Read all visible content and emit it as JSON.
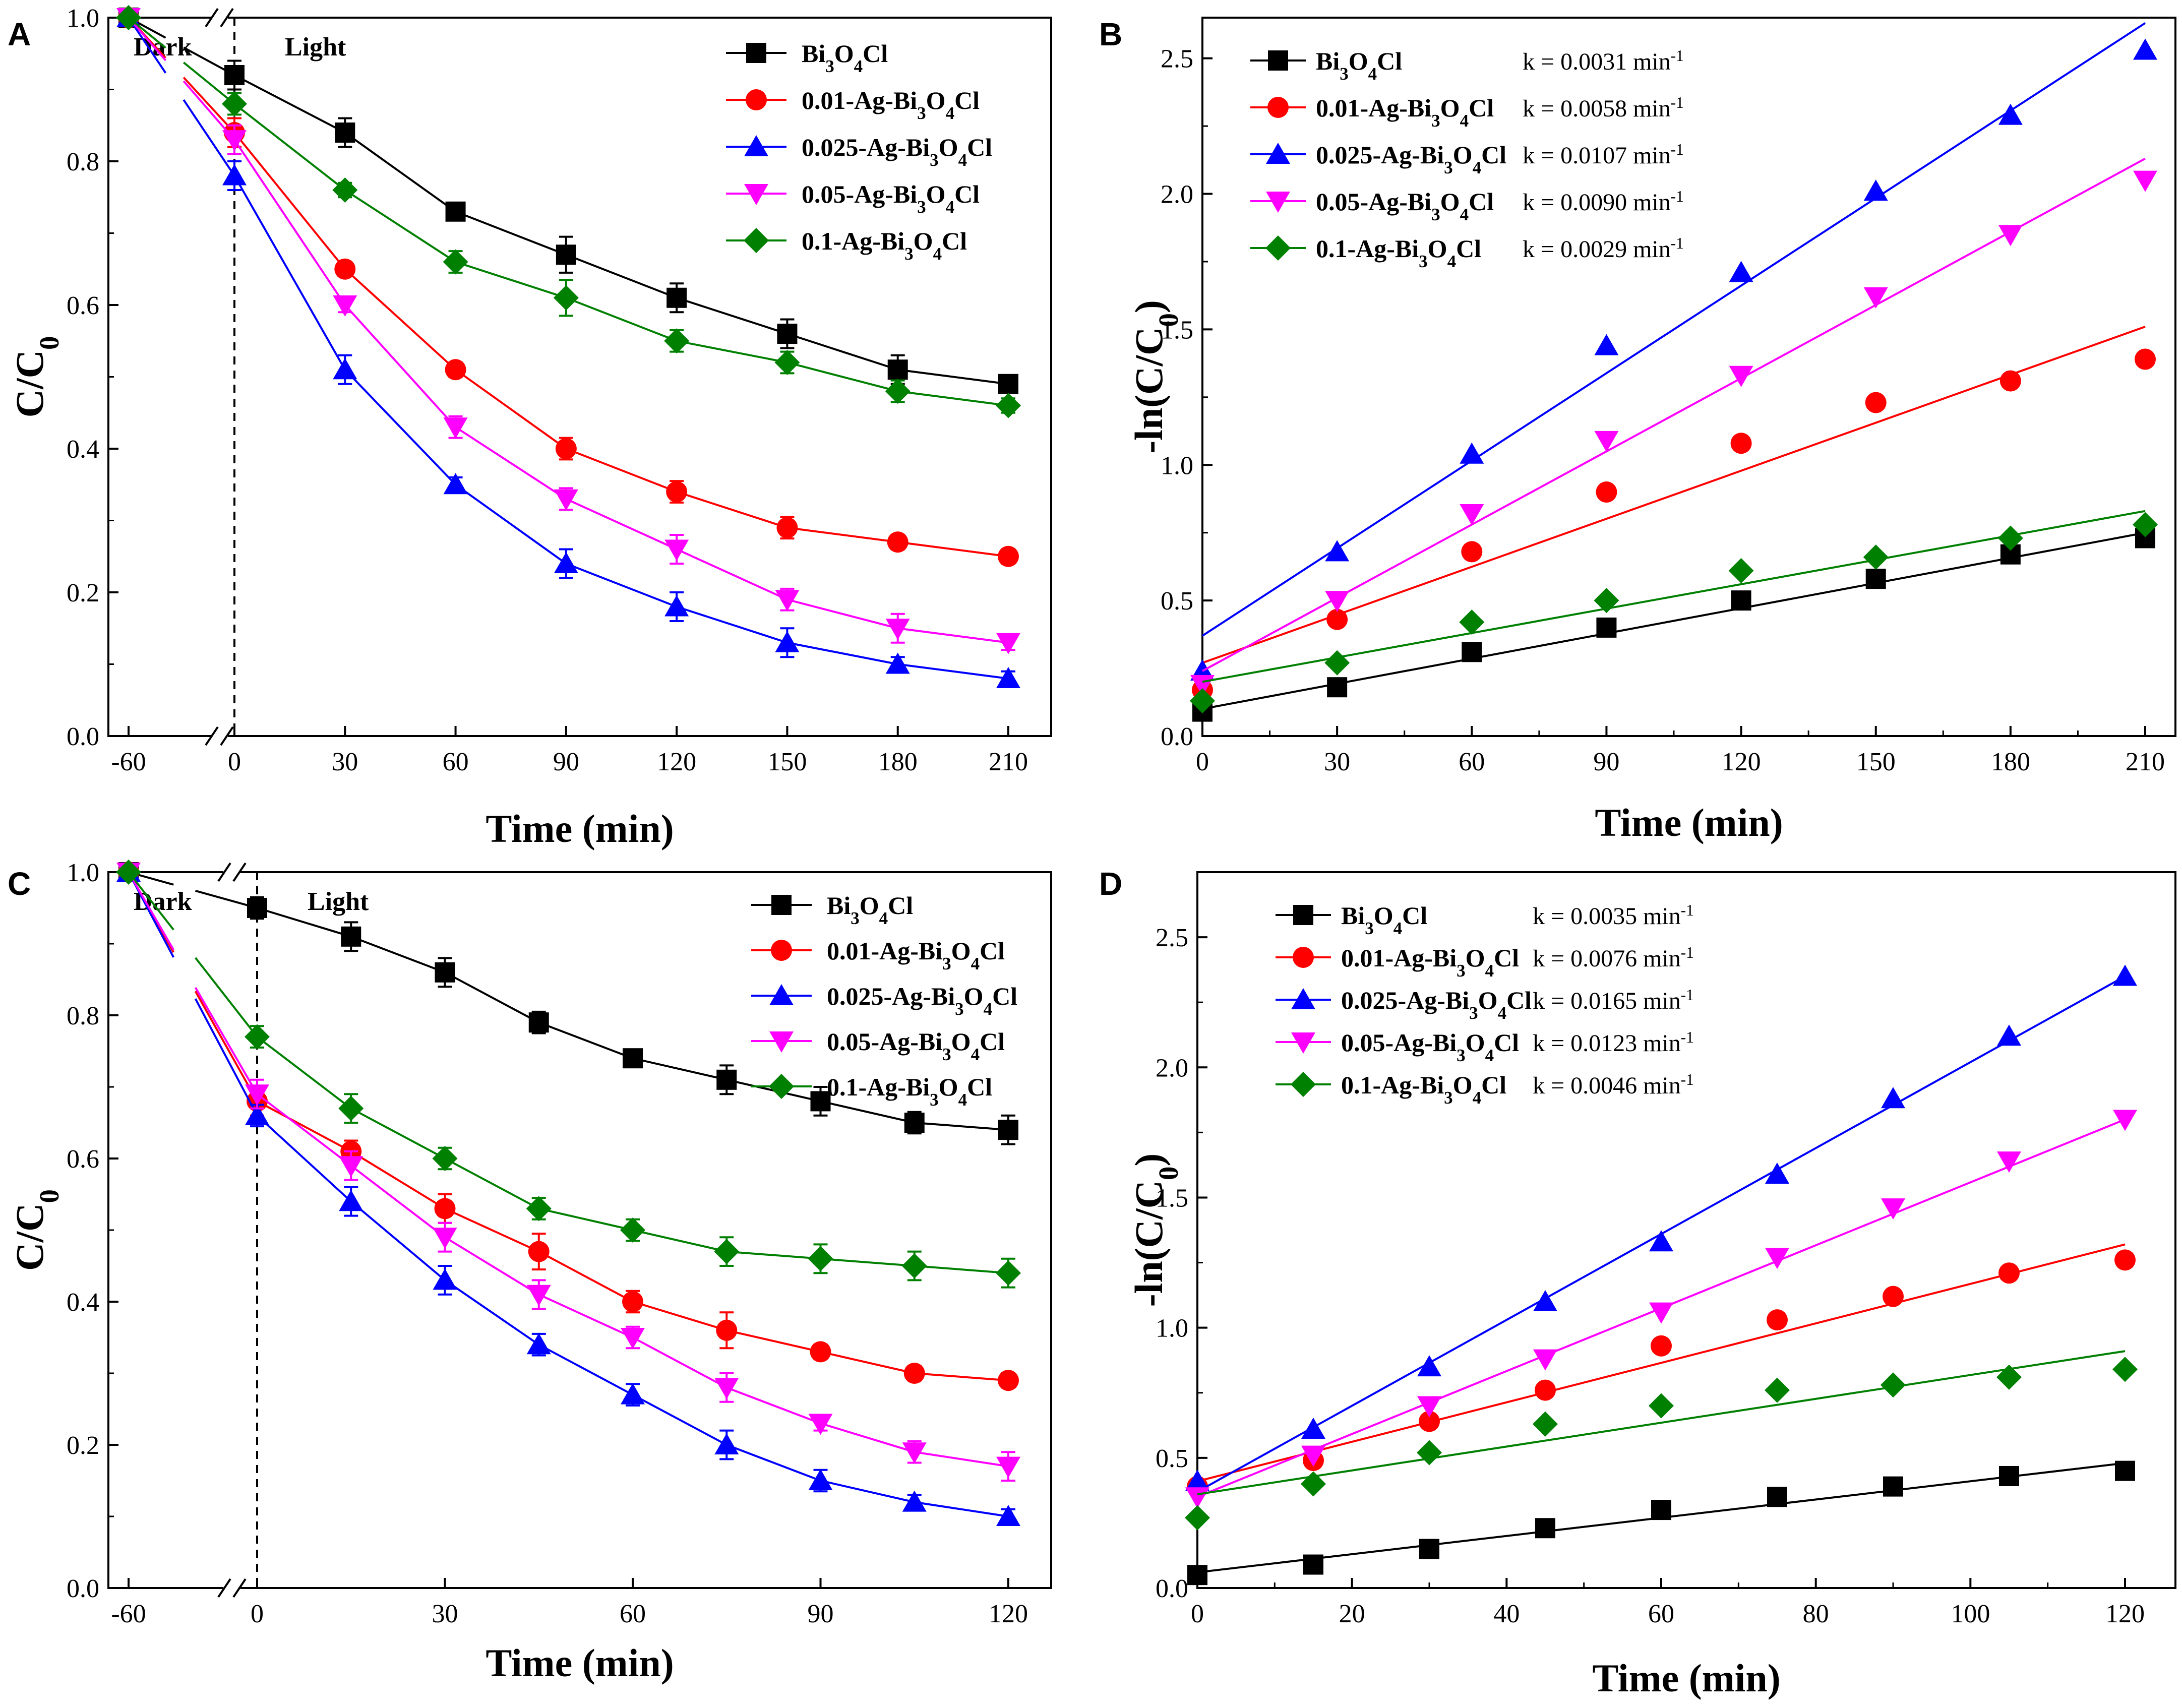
{
  "figure": {
    "series_colors": {
      "Bi3O4Cl": "#000000",
      "0.01-Ag-Bi3O4Cl": "#ff0000",
      "0.025-Ag-Bi3O4Cl": "#0000ff",
      "0.05-Ag-Bi3O4Cl": "#ff00ff",
      "0.1-Ag-Bi3O4Cl": "#008000"
    }
  },
  "chart_data": [
    {
      "panel": "A",
      "type": "line",
      "xlabel": "Time (min)",
      "ylabel": "C/C0",
      "x_tick_labels": [
        "-60",
        "0",
        "30",
        "60",
        "90",
        "120",
        "150",
        "180",
        "210"
      ],
      "y_ticks": [
        "0.0",
        "0.2",
        "0.4",
        "0.6",
        "0.8",
        "1.0"
      ],
      "ylim": [
        0,
        1.0
      ],
      "annotations": {
        "dark": "Dark",
        "light": "Light"
      },
      "x": [
        -60,
        0,
        30,
        60,
        90,
        120,
        150,
        180,
        210
      ],
      "series": [
        {
          "name": "Bi3O4Cl",
          "marker": "square",
          "values": [
            1.0,
            0.92,
            0.84,
            0.73,
            0.67,
            0.61,
            0.56,
            0.51,
            0.49
          ],
          "errors": [
            0,
            0.02,
            0.02,
            0.01,
            0.025,
            0.02,
            0.02,
            0.02,
            0.01
          ]
        },
        {
          "name": "0.01-Ag-Bi3O4Cl",
          "marker": "circle",
          "values": [
            1.0,
            0.84,
            0.65,
            0.51,
            0.4,
            0.34,
            0.29,
            0.27,
            0.25
          ],
          "errors": [
            0,
            0.02,
            0.01,
            0.01,
            0.015,
            0.015,
            0.015,
            0.01,
            0.01
          ]
        },
        {
          "name": "0.025-Ag-Bi3O4Cl",
          "marker": "triangle-up",
          "values": [
            1.0,
            0.78,
            0.51,
            0.35,
            0.24,
            0.18,
            0.13,
            0.1,
            0.08
          ],
          "errors": [
            0,
            0.02,
            0.02,
            0.01,
            0.02,
            0.02,
            0.02,
            0.01,
            0.01
          ]
        },
        {
          "name": "0.05-Ag-Bi3O4Cl",
          "marker": "triangle-down",
          "values": [
            1.0,
            0.83,
            0.6,
            0.43,
            0.33,
            0.26,
            0.19,
            0.15,
            0.13
          ],
          "errors": [
            0,
            0.02,
            0.01,
            0.015,
            0.015,
            0.02,
            0.015,
            0.02,
            0.01
          ]
        },
        {
          "name": "0.1-Ag-Bi3O4Cl",
          "marker": "diamond",
          "values": [
            1.0,
            0.88,
            0.76,
            0.66,
            0.61,
            0.55,
            0.52,
            0.48,
            0.46
          ],
          "errors": [
            0,
            0.015,
            0.01,
            0.015,
            0.025,
            0.015,
            0.015,
            0.015,
            0.01
          ]
        }
      ],
      "legend": [
        "Bi",
        "3",
        "O",
        "4",
        "Cl"
      ]
    },
    {
      "panel": "B",
      "type": "scatter",
      "xlabel": "Time (min)",
      "ylabel": "-ln(C/C0)",
      "x_ticks": [
        "0",
        "30",
        "60",
        "90",
        "120",
        "150",
        "180",
        "210"
      ],
      "y_ticks": [
        "0.0",
        "0.5",
        "1.0",
        "1.5",
        "2.0",
        "2.5"
      ],
      "xlim": [
        0,
        210
      ],
      "ylim": [
        0,
        2.65
      ],
      "x": [
        0,
        30,
        60,
        90,
        120,
        150,
        180,
        210
      ],
      "series": [
        {
          "name": "Bi3O4Cl",
          "k": "k = 0.0031 min",
          "marker": "square",
          "values": [
            0.09,
            0.18,
            0.31,
            0.4,
            0.5,
            0.58,
            0.67,
            0.73
          ],
          "fit": [
            0.1,
            0.75
          ]
        },
        {
          "name": "0.01-Ag-Bi3O4Cl",
          "k": "k = 0.0058 min",
          "marker": "circle",
          "values": [
            0.17,
            0.43,
            0.68,
            0.9,
            1.08,
            1.23,
            1.31,
            1.39
          ],
          "fit": [
            0.27,
            1.51
          ]
        },
        {
          "name": "0.025-Ag-Bi3O4Cl",
          "k": "k = 0.0107 min",
          "marker": "triangle-up",
          "values": [
            0.24,
            0.68,
            1.04,
            1.44,
            1.71,
            2.01,
            2.29,
            2.53
          ],
          "fit": [
            0.37,
            2.63
          ]
        },
        {
          "name": "0.05-Ag-Bi3O4Cl",
          "k": "k = 0.0090 min",
          "marker": "triangle-down",
          "values": [
            0.19,
            0.5,
            0.82,
            1.09,
            1.33,
            1.62,
            1.85,
            2.05
          ],
          "fit": [
            0.24,
            2.13
          ]
        },
        {
          "name": "0.1-Ag-Bi3O4Cl",
          "k": "k = 0.0029 min",
          "marker": "diamond",
          "values": [
            0.13,
            0.27,
            0.42,
            0.5,
            0.61,
            0.66,
            0.73,
            0.78
          ],
          "fit": [
            0.2,
            0.83
          ]
        }
      ]
    },
    {
      "panel": "C",
      "type": "line",
      "xlabel": "Time (min)",
      "ylabel": "C/C0",
      "x_tick_labels": [
        "-60",
        "0",
        "30",
        "60",
        "90",
        "120"
      ],
      "y_ticks": [
        "0.0",
        "0.2",
        "0.4",
        "0.6",
        "0.8",
        "1.0"
      ],
      "ylim": [
        0,
        1.0
      ],
      "annotations": {
        "dark": "Dark",
        "light": "Light"
      },
      "x": [
        -60,
        0,
        15,
        30,
        45,
        60,
        75,
        90,
        105,
        120
      ],
      "series": [
        {
          "name": "Bi3O4Cl",
          "marker": "square",
          "values": [
            1.0,
            0.95,
            0.91,
            0.86,
            0.79,
            0.74,
            0.71,
            0.68,
            0.65,
            0.64
          ],
          "errors": [
            0,
            0.015,
            0.02,
            0.02,
            0.015,
            0.01,
            0.02,
            0.02,
            0.015,
            0.02
          ]
        },
        {
          "name": "0.01-Ag-Bi3O4Cl",
          "marker": "circle",
          "values": [
            1.0,
            0.68,
            0.61,
            0.53,
            0.47,
            0.4,
            0.36,
            0.33,
            0.3,
            0.29
          ],
          "errors": [
            0,
            0.02,
            0.015,
            0.02,
            0.025,
            0.015,
            0.025,
            0.01,
            0.01,
            0.01
          ]
        },
        {
          "name": "0.025-Ag-Bi3O4Cl",
          "marker": "triangle-up",
          "values": [
            1.0,
            0.66,
            0.54,
            0.43,
            0.34,
            0.27,
            0.2,
            0.15,
            0.12,
            0.1
          ],
          "errors": [
            0,
            0.015,
            0.02,
            0.02,
            0.015,
            0.015,
            0.02,
            0.015,
            0.01,
            0.01
          ]
        },
        {
          "name": "0.05-Ag-Bi3O4Cl",
          "marker": "triangle-down",
          "values": [
            1.0,
            0.69,
            0.59,
            0.49,
            0.41,
            0.35,
            0.28,
            0.23,
            0.19,
            0.17
          ],
          "errors": [
            0,
            0.02,
            0.02,
            0.02,
            0.02,
            0.015,
            0.02,
            0.01,
            0.015,
            0.02
          ]
        },
        {
          "name": "0.1-Ag-Bi3O4Cl",
          "marker": "diamond",
          "values": [
            1.0,
            0.77,
            0.67,
            0.6,
            0.53,
            0.5,
            0.47,
            0.46,
            0.45,
            0.44
          ],
          "errors": [
            0,
            0.015,
            0.02,
            0.015,
            0.015,
            0.015,
            0.02,
            0.02,
            0.02,
            0.02
          ]
        }
      ]
    },
    {
      "panel": "D",
      "type": "scatter",
      "xlabel": "Time (min)",
      "ylabel": "-ln(C/C0)",
      "x_ticks": [
        "0",
        "20",
        "40",
        "60",
        "80",
        "100",
        "120"
      ],
      "y_ticks": [
        "0.0",
        "0.5",
        "1.0",
        "1.5",
        "2.0",
        "2.5"
      ],
      "xlim": [
        0,
        130
      ],
      "ylim": [
        0,
        2.75
      ],
      "x": [
        0,
        15,
        30,
        45,
        60,
        75,
        90,
        105,
        120
      ],
      "series": [
        {
          "name": "Bi3O4Cl",
          "k": "k = 0.0035 min",
          "marker": "square",
          "values": [
            0.05,
            0.09,
            0.15,
            0.23,
            0.3,
            0.35,
            0.39,
            0.43,
            0.45
          ],
          "fit": [
            0.06,
            0.48
          ]
        },
        {
          "name": "0.01-Ag-Bi3O4Cl",
          "k": "k = 0.0076 min",
          "marker": "circle",
          "values": [
            0.39,
            0.49,
            0.64,
            0.76,
            0.93,
            1.03,
            1.12,
            1.21,
            1.26
          ],
          "fit": [
            0.41,
            1.32
          ]
        },
        {
          "name": "0.025-Ag-Bi3O4Cl",
          "k": "k = 0.0165 min",
          "marker": "triangle-up",
          "values": [
            0.41,
            0.61,
            0.85,
            1.1,
            1.33,
            1.59,
            1.88,
            2.12,
            2.35
          ],
          "fit": [
            0.37,
            2.35
          ]
        },
        {
          "name": "0.05-Ag-Bi3O4Cl",
          "k": "k = 0.0123 min",
          "marker": "triangle-down",
          "values": [
            0.35,
            0.51,
            0.7,
            0.88,
            1.06,
            1.27,
            1.46,
            1.64,
            1.8
          ],
          "fit": [
            0.35,
            1.8
          ]
        },
        {
          "name": "0.1-Ag-Bi3O4Cl",
          "k": "k = 0.0046 min",
          "marker": "diamond",
          "values": [
            0.27,
            0.4,
            0.52,
            0.63,
            0.7,
            0.76,
            0.78,
            0.81,
            0.84
          ],
          "fit": [
            0.36,
            0.91
          ]
        }
      ]
    }
  ]
}
